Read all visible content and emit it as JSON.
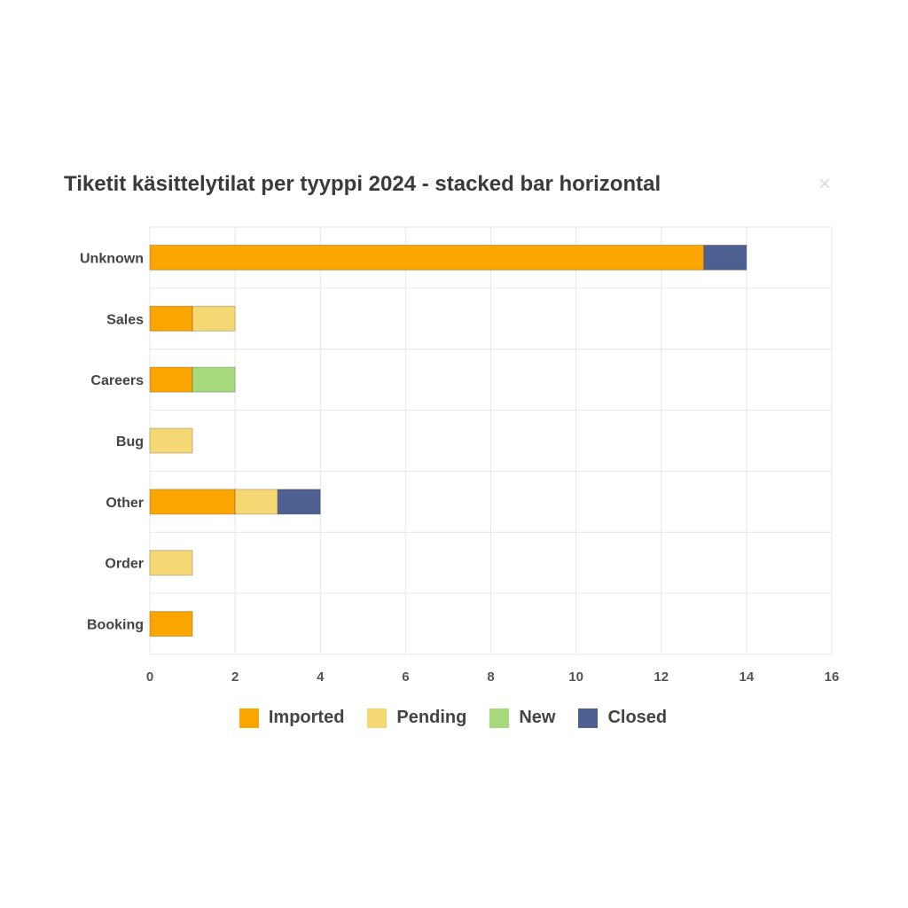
{
  "chart_data": {
    "type": "bar",
    "orientation": "horizontal",
    "stacked": true,
    "title": "Tiketit käsittelytilat per tyyppi 2024 - stacked bar horizontal",
    "categories": [
      "Unknown",
      "Sales",
      "Careers",
      "Bug",
      "Other",
      "Order",
      "Booking"
    ],
    "series": [
      {
        "name": "Imported",
        "color": "#FAA500",
        "values": [
          13,
          1,
          1,
          0,
          2,
          0,
          1
        ]
      },
      {
        "name": "Pending",
        "color": "#F5D774",
        "values": [
          0,
          1,
          0,
          1,
          1,
          1,
          0
        ]
      },
      {
        "name": "New",
        "color": "#A6DA7C",
        "values": [
          0,
          0,
          1,
          0,
          0,
          0,
          0
        ]
      },
      {
        "name": "Closed",
        "color": "#4E5F91",
        "values": [
          1,
          0,
          0,
          0,
          1,
          0,
          0
        ]
      }
    ],
    "xlim": [
      0,
      16
    ],
    "xticks": [
      "0",
      "2",
      "4",
      "6",
      "8",
      "10",
      "12",
      "14",
      "16"
    ],
    "xlabel": "",
    "ylabel": "",
    "grid": true,
    "legend_position": "bottom"
  },
  "ui": {
    "close_symbol": "×"
  }
}
